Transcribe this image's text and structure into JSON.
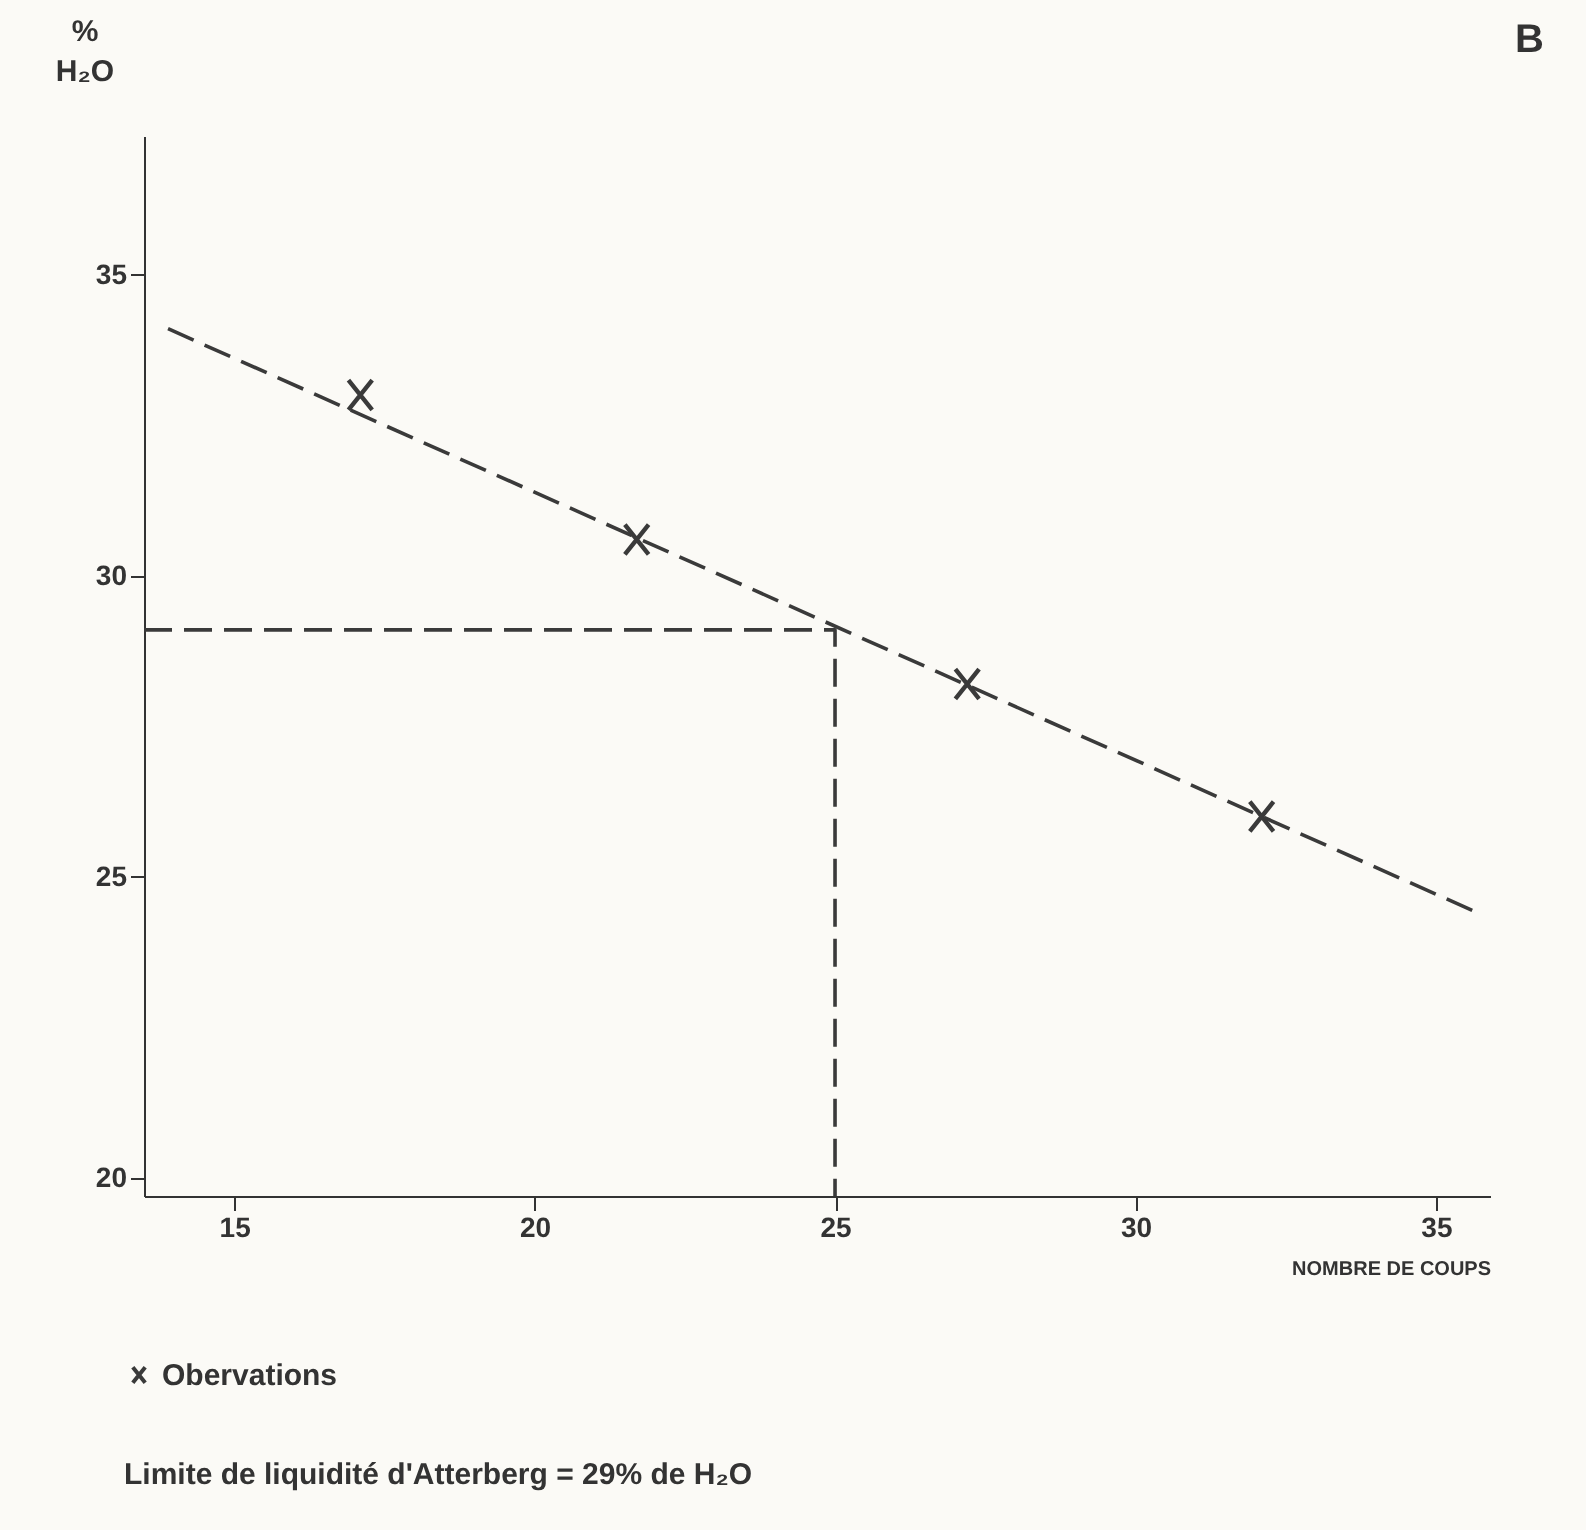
{
  "chart_data": {
    "type": "scatter",
    "title": "B",
    "xlabel": "NOMBRE DE COUPS",
    "ylabel": "%\nH₂O",
    "xlim": [
      13.5,
      35.9
    ],
    "ylim": [
      19.7,
      37.3
    ],
    "xticks": [
      15,
      20,
      25,
      30,
      35
    ],
    "yticks": [
      20,
      25,
      30,
      35
    ],
    "grid": false,
    "legend": "bottom left",
    "marker": "cross",
    "series": [
      {
        "name": "Obervations",
        "color": "#3a3a3a",
        "x": [
          17.1,
          21.7,
          27.2,
          32.1
        ],
        "values": [
          33.0,
          30.6,
          28.2,
          26.0
        ]
      },
      {
        "type": "line",
        "marker": "none",
        "color": "#3a3a3a",
        "line_style": "dashed",
        "x": [
          13.9,
          35.7
        ],
        "values": [
          34.1,
          24.4
        ]
      },
      {
        "type": "line",
        "marker": "none",
        "color": "#3a3a3a",
        "line_style": "dashed",
        "x": [
          13.5,
          25,
          25
        ],
        "values": [
          29.1,
          29.1,
          19.7
        ]
      }
    ],
    "annotations": [
      "Limite de liquidité d'Atterberg = 29% de H₂O"
    ]
  }
}
